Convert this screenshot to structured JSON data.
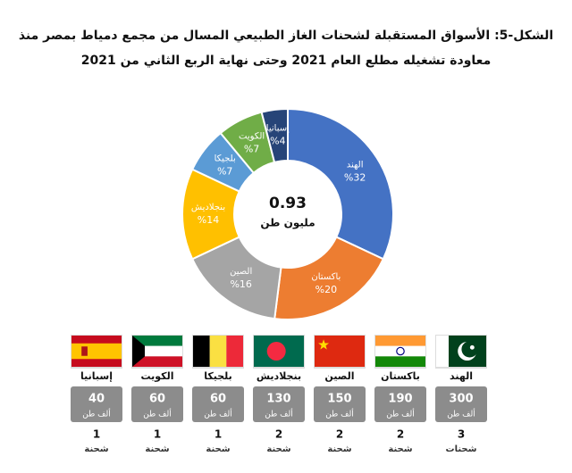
{
  "chart_data": {
    "type": "donut",
    "title": "الشكل-5: الأسواق المستقبلة لشحنات الغاز الطبيعي المسال من مجمع دمياط بمصر منذ معاودة تشغيله مطلع العام 2021 وحتى نهاية الربع الثاني من 2021",
    "categories": [
      "الهند",
      "باكستان",
      "الصين",
      "بنجلاديش",
      "بلجيكا",
      "الكويت",
      "إسبانيا"
    ],
    "values": [
      32,
      20,
      16,
      14,
      7,
      7,
      4
    ],
    "value_labels": [
      "%32",
      "%20",
      "%16",
      "%14",
      "%7",
      "%7",
      "%4"
    ],
    "colors": [
      "#4472c4",
      "#ed7d31",
      "#a5a5a5",
      "#ffc000",
      "#5b9bd5",
      "#70ad47",
      "#264478"
    ],
    "center_value": 0.93,
    "center_label": "مليون طن"
  },
  "markets": [
    {
      "country": "الهند",
      "tonnage": 300,
      "tonnage_unit": "ألف طن",
      "shipments": 3,
      "shipments_unit": "شحنات"
    },
    {
      "country": "باكستان",
      "tonnage": 190,
      "tonnage_unit": "ألف طن",
      "shipments": 2,
      "shipments_unit": "شحنة"
    },
    {
      "country": "الصين",
      "tonnage": 150,
      "tonnage_unit": "ألف طن",
      "shipments": 2,
      "shipments_unit": "شحنة"
    },
    {
      "country": "بنجلاديش",
      "tonnage": 130,
      "tonnage_unit": "ألف طن",
      "shipments": 2,
      "shipments_unit": "شحنة"
    },
    {
      "country": "بلجيكا",
      "tonnage": 60,
      "tonnage_unit": "ألف طن",
      "shipments": 1,
      "shipments_unit": "شحنة"
    },
    {
      "country": "الكويت",
      "tonnage": 60,
      "tonnage_unit": "ألف طن",
      "shipments": 1,
      "shipments_unit": "شحنة"
    },
    {
      "country": "إسبانيا",
      "tonnage": 40,
      "tonnage_unit": "ألف طن",
      "shipments": 1,
      "shipments_unit": "شحنة"
    }
  ]
}
